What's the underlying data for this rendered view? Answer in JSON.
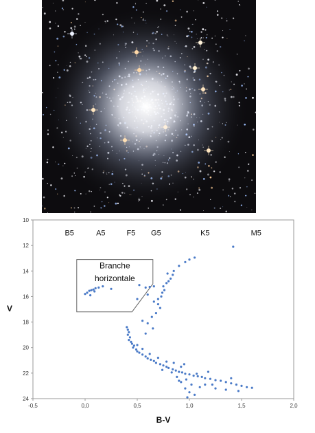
{
  "photo": {
    "subject": "globular star cluster"
  },
  "colors": {
    "points": "#4a7ac7",
    "frame": "#999999",
    "text": "#111111"
  },
  "chart_data": {
    "type": "scatter",
    "title": "",
    "xlabel": "B-V",
    "ylabel": "V",
    "xlim": [
      -0.5,
      2.0
    ],
    "ylim": [
      24,
      10
    ],
    "y_inverted": true,
    "x_ticks": [
      "-0,5",
      "0,0",
      "0,5",
      "1,0",
      "1,5",
      "2,0"
    ],
    "x_tick_values": [
      -0.5,
      0,
      0.5,
      1.0,
      1.5,
      2.0
    ],
    "y_ticks": [
      "10",
      "12",
      "14",
      "16",
      "18",
      "20",
      "22",
      "24"
    ],
    "y_tick_values": [
      10,
      12,
      14,
      16,
      18,
      20,
      22,
      24
    ],
    "grid": false,
    "legend": "none",
    "spectral_classes": [
      {
        "label": "B5",
        "x": -0.15
      },
      {
        "label": "A5",
        "x": 0.15
      },
      {
        "label": "F5",
        "x": 0.44
      },
      {
        "label": "G5",
        "x": 0.68
      },
      {
        "label": "K5",
        "x": 1.15
      },
      {
        "label": "M5",
        "x": 1.64
      }
    ],
    "annotation": {
      "text_lines": [
        "Branche",
        "horizontale"
      ],
      "box_corners": [
        [
          -0.08,
          13.1
        ],
        [
          0.65,
          13.1
        ],
        [
          0.65,
          15.0
        ],
        [
          0.45,
          17.2
        ],
        [
          -0.08,
          17.2
        ]
      ]
    },
    "series": [
      {
        "points": [
          [
            0.0,
            15.8
          ],
          [
            0.02,
            15.7
          ],
          [
            0.04,
            15.55
          ],
          [
            0.06,
            15.5
          ],
          [
            0.08,
            15.45
          ],
          [
            0.1,
            15.35
          ],
          [
            0.13,
            15.3
          ],
          [
            0.17,
            15.2
          ],
          [
            0.25,
            15.4
          ],
          [
            0.05,
            15.9
          ],
          [
            0.09,
            15.6
          ],
          [
            0.52,
            15.1
          ],
          [
            0.58,
            15.3
          ],
          [
            0.62,
            15.25
          ],
          [
            0.66,
            15.2
          ],
          [
            0.6,
            15.85
          ],
          [
            0.5,
            16.2
          ],
          [
            0.66,
            16.4
          ],
          [
            0.7,
            16.2
          ],
          [
            0.73,
            16.0
          ],
          [
            0.74,
            15.7
          ],
          [
            0.76,
            15.5
          ],
          [
            0.75,
            15.2
          ],
          [
            0.78,
            14.95
          ],
          [
            0.8,
            14.8
          ],
          [
            0.82,
            14.6
          ],
          [
            0.84,
            14.3
          ],
          [
            0.79,
            14.2
          ],
          [
            0.85,
            14.0
          ],
          [
            0.9,
            13.6
          ],
          [
            0.96,
            13.3
          ],
          [
            1.0,
            13.1
          ],
          [
            1.05,
            12.95
          ],
          [
            1.42,
            12.1
          ],
          [
            0.7,
            16.6
          ],
          [
            0.72,
            16.9
          ],
          [
            0.68,
            17.3
          ],
          [
            0.64,
            17.6
          ],
          [
            0.6,
            18.1
          ],
          [
            0.55,
            17.9
          ],
          [
            0.65,
            18.5
          ],
          [
            0.58,
            18.9
          ],
          [
            0.4,
            18.4
          ],
          [
            0.41,
            18.6
          ],
          [
            0.42,
            18.8
          ],
          [
            0.41,
            19.0
          ],
          [
            0.43,
            19.2
          ],
          [
            0.42,
            19.4
          ],
          [
            0.44,
            19.55
          ],
          [
            0.45,
            19.7
          ],
          [
            0.47,
            19.85
          ],
          [
            0.46,
            20.0
          ],
          [
            0.49,
            20.15
          ],
          [
            0.5,
            20.3
          ],
          [
            0.52,
            20.4
          ],
          [
            0.55,
            20.55
          ],
          [
            0.58,
            20.7
          ],
          [
            0.6,
            20.85
          ],
          [
            0.63,
            20.95
          ],
          [
            0.66,
            21.05
          ],
          [
            0.68,
            21.2
          ],
          [
            0.72,
            21.3
          ],
          [
            0.75,
            21.4
          ],
          [
            0.78,
            21.5
          ],
          [
            0.8,
            21.6
          ],
          [
            0.84,
            21.7
          ],
          [
            0.87,
            21.8
          ],
          [
            0.9,
            21.9
          ],
          [
            0.93,
            21.95
          ],
          [
            0.96,
            22.05
          ],
          [
            1.0,
            22.1
          ],
          [
            1.04,
            22.2
          ],
          [
            1.08,
            22.25
          ],
          [
            1.12,
            22.3
          ],
          [
            1.15,
            22.4
          ],
          [
            1.2,
            22.45
          ],
          [
            1.25,
            22.55
          ],
          [
            1.3,
            22.6
          ],
          [
            1.35,
            22.7
          ],
          [
            1.4,
            22.8
          ],
          [
            1.45,
            22.9
          ],
          [
            1.5,
            23.0
          ],
          [
            1.55,
            23.1
          ],
          [
            1.6,
            23.15
          ],
          [
            1.35,
            23.3
          ],
          [
            1.25,
            23.2
          ],
          [
            1.1,
            23.1
          ],
          [
            1.0,
            23.5
          ],
          [
            0.98,
            23.9
          ],
          [
            1.05,
            23.7
          ],
          [
            0.92,
            22.7
          ],
          [
            0.97,
            22.5
          ],
          [
            1.02,
            22.9
          ],
          [
            0.88,
            22.3
          ],
          [
            1.15,
            22.9
          ],
          [
            1.22,
            22.9
          ],
          [
            0.85,
            21.2
          ],
          [
            0.78,
            21.1
          ],
          [
            0.7,
            20.8
          ],
          [
            0.62,
            20.5
          ],
          [
            0.55,
            20.1
          ],
          [
            0.5,
            19.8
          ],
          [
            0.95,
            21.3
          ],
          [
            0.92,
            21.5
          ],
          [
            0.9,
            22.6
          ],
          [
            1.18,
            21.9
          ],
          [
            0.96,
            23.2
          ],
          [
            1.4,
            22.4
          ],
          [
            1.47,
            23.4
          ],
          [
            1.07,
            22.05
          ],
          [
            0.83,
            21.95
          ],
          [
            0.74,
            21.75
          ]
        ]
      }
    ]
  }
}
